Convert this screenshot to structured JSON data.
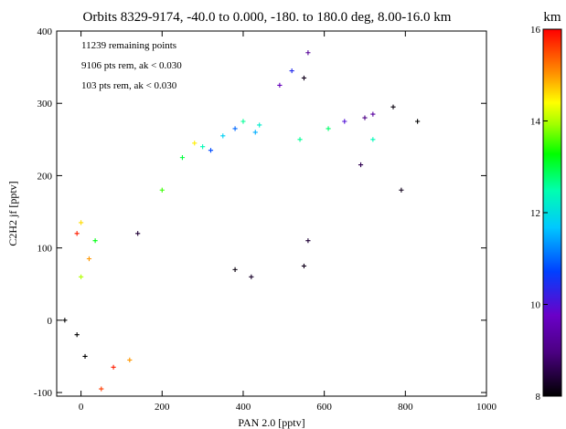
{
  "chart_data": {
    "type": "scatter",
    "title": "Orbits 8329-9174, -40.0 to 0.000, -180. to 180.0 deg, 8.00-16.0 km",
    "xlabel": "PAN 2.0 [pptv]",
    "ylabel": "C2H2 jf [pptv]",
    "xlim": [
      -60,
      1000
    ],
    "ylim": [
      -105,
      400
    ],
    "xticks": [
      "0",
      "200",
      "400",
      "600",
      "800",
      "1000"
    ],
    "yticks": [
      "-100",
      "0",
      "100",
      "200",
      "300",
      "400"
    ],
    "xtick_values": [
      0,
      200,
      400,
      600,
      800,
      1000
    ],
    "ytick_values": [
      -100,
      0,
      100,
      200,
      300,
      400
    ],
    "grid": false,
    "marker": "plus",
    "annotations": [
      "11239 remaining points",
      "9106 pts rem, ak < 0.030",
      "103 pts rem, ak < 0.030"
    ],
    "colorbar": {
      "label": "km",
      "range": [
        8,
        16
      ],
      "ticks": [
        "8",
        "10",
        "12",
        "14",
        "16"
      ],
      "tick_values": [
        8,
        10,
        12,
        14,
        16
      ],
      "colormap": "rainbow (black-purple-blue-cyan-green-yellow-red)"
    },
    "points": [
      [
        50,
        -95,
        15.6
      ],
      [
        80,
        -65,
        15.8
      ],
      [
        10,
        -50,
        8.0
      ],
      [
        120,
        -55,
        15.0
      ],
      [
        560,
        370,
        9.2
      ],
      [
        520,
        345,
        10.4
      ],
      [
        490,
        325,
        9.6
      ],
      [
        550,
        335,
        8.2
      ],
      [
        830,
        275,
        8.0
      ],
      [
        790,
        180,
        8.2
      ],
      [
        770,
        295,
        8.1
      ],
      [
        720,
        285,
        9.3
      ],
      [
        700,
        280,
        9.0
      ],
      [
        650,
        275,
        10.0
      ],
      [
        610,
        265,
        12.8
      ],
      [
        690,
        215,
        8.6
      ],
      [
        720,
        250,
        12.4
      ],
      [
        540,
        250,
        12.6
      ],
      [
        440,
        270,
        12.2
      ],
      [
        430,
        260,
        11.5
      ],
      [
        400,
        275,
        12.6
      ],
      [
        380,
        265,
        11.0
      ],
      [
        350,
        255,
        11.8
      ],
      [
        550,
        75,
        8.2
      ],
      [
        560,
        110,
        8.4
      ],
      [
        420,
        60,
        8.3
      ],
      [
        380,
        70,
        8.1
      ],
      [
        0,
        135,
        14.6
      ],
      [
        -10,
        120,
        15.8
      ],
      [
        0,
        60,
        14.0
      ],
      [
        -40,
        0,
        8.0
      ],
      [
        -10,
        -20,
        8.0
      ],
      [
        35,
        110,
        13.2
      ],
      [
        20,
        85,
        15.0
      ],
      [
        140,
        120,
        8.4
      ],
      [
        280,
        245,
        14.5
      ],
      [
        300,
        240,
        12.4
      ],
      [
        320,
        235,
        10.8
      ],
      [
        250,
        225,
        13.0
      ],
      [
        200,
        180,
        13.5
      ]
    ]
  }
}
